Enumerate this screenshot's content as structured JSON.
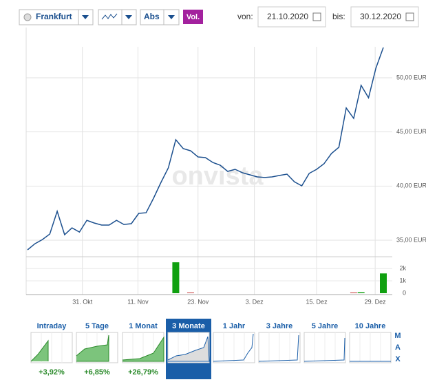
{
  "controls": {
    "exchange": "Frankfurt",
    "mode": "Abs",
    "volume_button": "Vol.",
    "from_label": "von:",
    "from_date": "21.10.2020",
    "to_label": "bis:",
    "to_date": "30.12.2020"
  },
  "chart_data": {
    "type": "line",
    "watermark": "onvista",
    "series": [
      {
        "color": "#1b4f8e",
        "values": [
          34.11,
          34.68,
          35.06,
          35.57,
          37.67,
          35.51,
          36.14,
          35.76,
          36.84,
          36.59,
          36.4,
          36.4,
          36.84,
          36.46,
          36.53,
          37.48,
          37.54,
          38.88,
          40.34,
          41.68,
          44.28,
          43.46,
          43.26,
          42.69,
          42.63,
          42.18,
          41.93,
          41.36,
          41.55,
          41.23,
          41.04,
          40.85,
          40.79,
          40.85,
          40.98,
          41.1,
          40.4,
          40.02,
          41.17,
          41.55,
          42.06,
          43.01,
          43.58,
          47.21,
          46.25,
          49.3,
          48.16,
          50.89,
          52.8
        ]
      }
    ],
    "xlim": [
      0,
      48
    ],
    "xticks": [
      {
        "value": 7.4,
        "label": "31. Okt"
      },
      {
        "value": 14.9,
        "label": "11. Nov"
      },
      {
        "value": 23.0,
        "label": "23. Nov"
      },
      {
        "value": 30.6,
        "label": "3. Dez"
      },
      {
        "value": 39.0,
        "label": "15. Dez"
      },
      {
        "value": 46.9,
        "label": "29. Dez"
      }
    ],
    "ylim": [
      33.54,
      54.64
    ],
    "yticks": [
      {
        "value": 35,
        "label": "35,00 EUR"
      },
      {
        "value": 40,
        "label": "40,00 EUR"
      },
      {
        "value": 45,
        "label": "45,00 EUR"
      },
      {
        "value": 50,
        "label": "50,00 EUR"
      }
    ],
    "grid": true,
    "volume": {
      "type": "bar",
      "x": [
        20,
        22,
        44,
        45,
        48
      ],
      "values": [
        2500,
        50,
        50,
        80,
        1600
      ],
      "colors": [
        "#10a010",
        "#c02020",
        "#c02020",
        "#10a010",
        "#10a010"
      ],
      "ylim": [
        0,
        2950
      ],
      "yticks": [
        0,
        {
          "value": 1000,
          "label": "1k"
        },
        {
          "value": 2000,
          "label": "2k"
        }
      ]
    }
  },
  "periods": {
    "tabs": [
      {
        "label": "Intraday",
        "change": "+3,92%"
      },
      {
        "label": "5 Tage",
        "change": "+6,85%"
      },
      {
        "label": "1 Monat",
        "change": "+26,79%"
      },
      {
        "label": "3 Monate"
      },
      {
        "label": "1 Jahr"
      },
      {
        "label": "3 Jahre"
      },
      {
        "label": "5 Jahre"
      },
      {
        "label": "10 Jahre"
      }
    ],
    "selected": 3,
    "max_letters": [
      "M",
      "A",
      "X"
    ]
  }
}
